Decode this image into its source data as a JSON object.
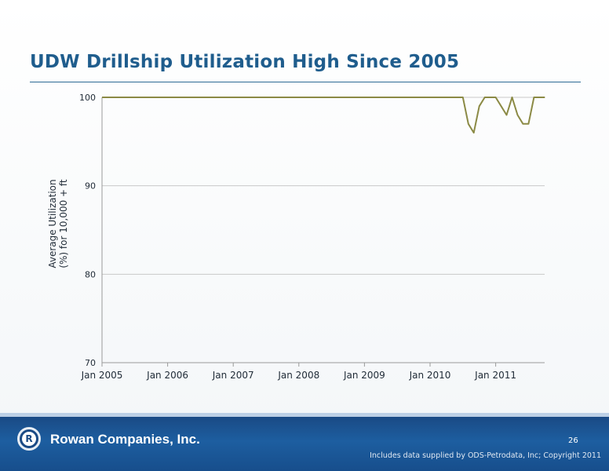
{
  "slide": {
    "title": "UDW Drillship Utilization High Since 2005",
    "page_number": "26",
    "company": "Rowan Companies, Inc.",
    "logo_letter": "R",
    "source_note": "Includes data supplied by ODS-Petrodata, Inc; Copyright 2011"
  },
  "colors": {
    "title": "#1f5d8d",
    "line": "#8b8a45",
    "grid": "#c9c9c9",
    "axis": "#9a9a9a",
    "footer": "#1a4a85"
  },
  "chart_data": {
    "type": "line",
    "title": "",
    "xlabel": "",
    "ylabel_lines": [
      "Average Utilization",
      "(%) for 10,000 + ft"
    ],
    "ylim": [
      70,
      100
    ],
    "yticks": [
      "70",
      "80",
      "90",
      "100"
    ],
    "xlim": [
      "2005-01",
      "2011-10"
    ],
    "xticks": [
      "Jan 2005",
      "Jan 2006",
      "Jan 2007",
      "Jan 2008",
      "Jan 2009",
      "Jan 2010",
      "Jan 2011"
    ],
    "grid": true,
    "series": [
      {
        "x": [
          "2005-01",
          "2010-07",
          "2010-08",
          "2010-09",
          "2010-10",
          "2010-11",
          "2010-12",
          "2011-01",
          "2011-02",
          "2011-03",
          "2011-04",
          "2011-05",
          "2011-06",
          "2011-07",
          "2011-08",
          "2011-09",
          "2011-10"
        ],
        "y": [
          100,
          100,
          97,
          96,
          99,
          100,
          100,
          100,
          99,
          98,
          100,
          98,
          97,
          97,
          100,
          100,
          100
        ]
      }
    ]
  }
}
